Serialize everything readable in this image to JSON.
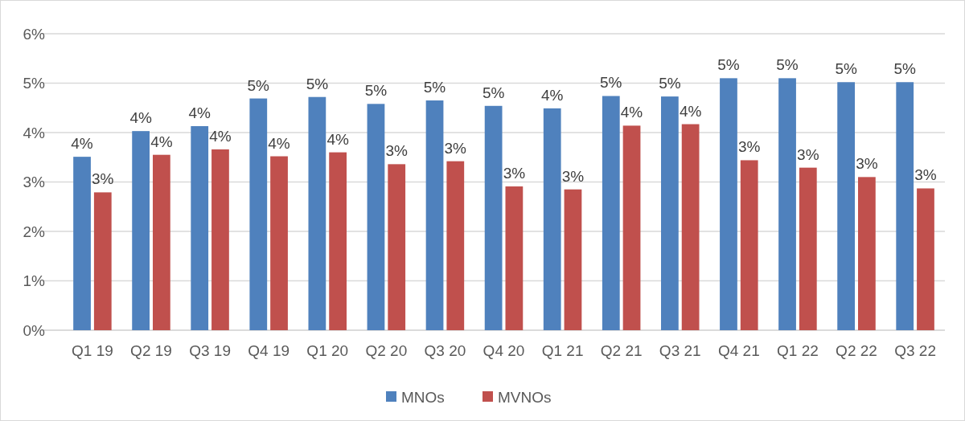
{
  "chart_data": {
    "type": "bar",
    "categories": [
      "Q1 19",
      "Q2 19",
      "Q3 19",
      "Q4 19",
      "Q1 20",
      "Q2 20",
      "Q3 20",
      "Q4 20",
      "Q1 21",
      "Q2 21",
      "Q3 21",
      "Q4 21",
      "Q1 22",
      "Q2 22",
      "Q3 22"
    ],
    "series": [
      {
        "name": "MNOs",
        "color": "#4f81bd",
        "values": [
          3.51,
          4.03,
          4.13,
          4.69,
          4.72,
          4.58,
          4.65,
          4.54,
          4.49,
          4.74,
          4.73,
          5.1,
          5.1,
          5.02,
          5.02
        ],
        "value_labels": [
          "4%",
          "4%",
          "4%",
          "5%",
          "5%",
          "5%",
          "5%",
          "5%",
          "4%",
          "5%",
          "5%",
          "5%",
          "5%",
          "5%",
          "5%"
        ]
      },
      {
        "name": "MVNOs",
        "color": "#c0504d",
        "values": [
          2.79,
          3.55,
          3.66,
          3.52,
          3.6,
          3.36,
          3.42,
          2.91,
          2.85,
          4.14,
          4.17,
          3.44,
          3.29,
          3.1,
          2.87
        ],
        "value_labels": [
          "3%",
          "4%",
          "4%",
          "4%",
          "4%",
          "3%",
          "3%",
          "3%",
          "3%",
          "4%",
          "4%",
          "3%",
          "3%",
          "3%",
          "3%"
        ]
      }
    ],
    "ylim": [
      0,
      6
    ],
    "yticks": [
      {
        "value": 0,
        "label": "0%"
      },
      {
        "value": 1,
        "label": "1%"
      },
      {
        "value": 2,
        "label": "2%"
      },
      {
        "value": 3,
        "label": "3%"
      },
      {
        "value": 4,
        "label": "4%"
      },
      {
        "value": 5,
        "label": "5%"
      },
      {
        "value": 6,
        "label": "6%"
      }
    ],
    "grid": "y",
    "legend": "bottom"
  }
}
